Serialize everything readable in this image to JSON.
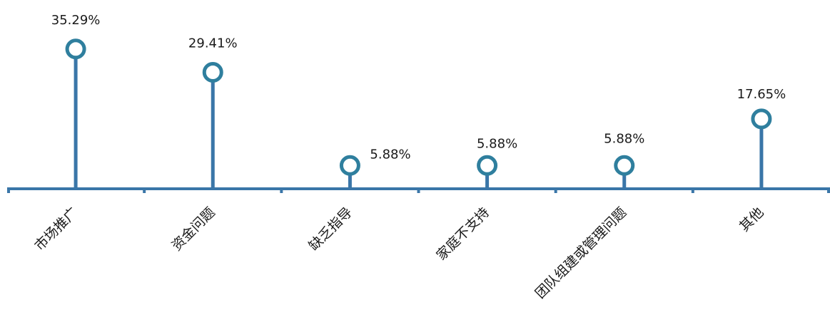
{
  "chart_data": {
    "type": "lollipop",
    "categories": [
      "市场推广",
      "资金问题",
      "缺乏指导",
      "家庭不支持",
      "团队组建或管理问题",
      "其他"
    ],
    "values": [
      35.29,
      29.41,
      5.88,
      5.88,
      5.88,
      17.65
    ],
    "value_labels": [
      "35.29%",
      "29.41%",
      "5.88%",
      "5.88%",
      "5.88%",
      "17.65%"
    ],
    "value_unit": "%",
    "title": "",
    "xlabel": "",
    "ylabel": "",
    "ylim": [
      0,
      40
    ],
    "grid": false,
    "legend": "none",
    "colors": {
      "stem": "#3a76a8",
      "marker": "#2f7f9e",
      "axis": "#3a76a8"
    }
  }
}
